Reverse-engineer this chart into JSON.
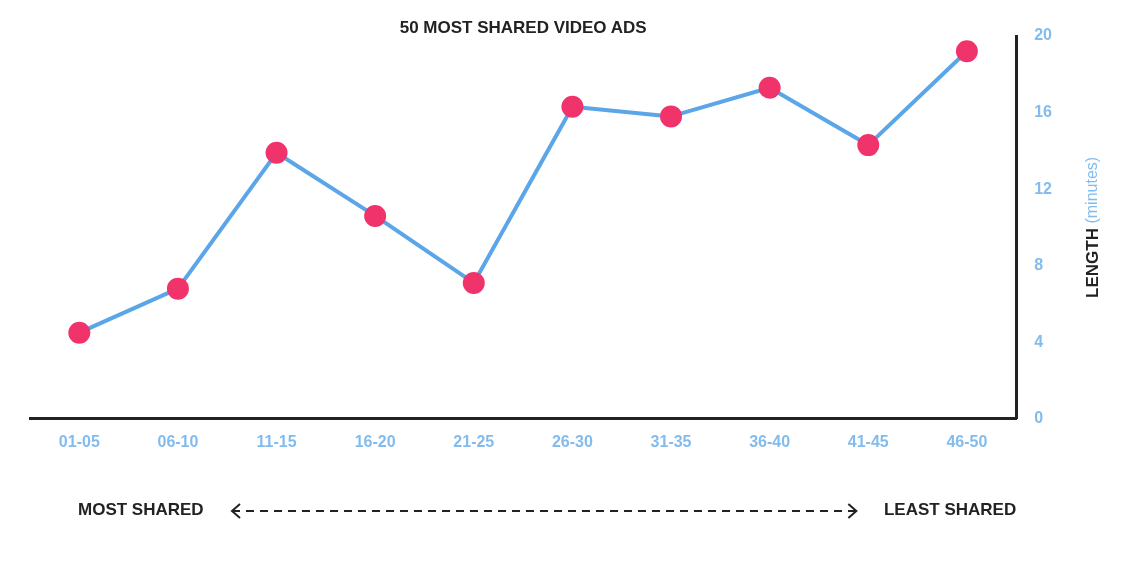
{
  "chart_data": {
    "type": "line",
    "title": "50 MOST SHARED VIDEO ADS",
    "ylabel": "LENGTH (minutes)",
    "categories": [
      "01-05",
      "06-10",
      "11-15",
      "16-20",
      "21-25",
      "26-30",
      "31-35",
      "36-40",
      "41-45",
      "46-50"
    ],
    "series": [
      {
        "color": "#5ba6e8",
        "values": [
          4.5,
          6.8,
          13.9,
          10.6,
          7.1,
          16.3,
          15.8,
          17.3,
          14.3,
          19.2
        ]
      }
    ],
    "ylim": [
      0,
      20
    ],
    "yticks": [
      0,
      4,
      8,
      12,
      16,
      20
    ],
    "grid": false,
    "legend": false,
    "marker": "circle",
    "line_style": "solid",
    "annotations": [
      "MOST SHARED",
      "LEAST SHARED"
    ]
  }
}
